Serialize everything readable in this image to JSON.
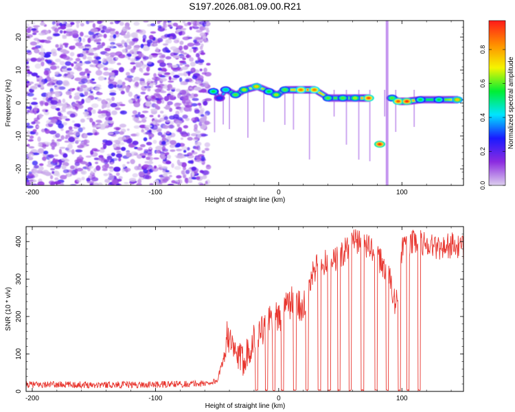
{
  "figure_title": "S197.2026.081.09.00.R21",
  "colorbar": {
    "label": "Normalized spectral amplitude",
    "ticks": [
      "0.0",
      "0.2",
      "0.4",
      "0.6",
      "0.8"
    ],
    "tick_values": [
      0.0,
      0.2,
      0.4,
      0.6,
      0.8
    ],
    "range": [
      0,
      0.97
    ],
    "colors": [
      "#dccfee",
      "#8c2be0",
      "#1a1aff",
      "#00e5ff",
      "#00ee33",
      "#f5f500",
      "#ff8c00",
      "#ff1a1a"
    ]
  },
  "chart_data": [
    {
      "type": "heatmap",
      "title": "S197.2026.081.09.00.R21",
      "xlabel": "Height of straight line (km)",
      "ylabel": "Frequency (Hz)",
      "xlim": [
        -205,
        150
      ],
      "ylim": [
        -25,
        25
      ],
      "xticks": [
        -200,
        -100,
        0,
        100
      ],
      "yticks": [
        -20,
        -10,
        0,
        10,
        20
      ],
      "noise_region_x": [
        -205,
        -57
      ],
      "noise_amplitude_range": [
        0.0,
        0.25
      ],
      "ridge": [
        {
          "x": -53,
          "f": 3.5,
          "a": 0.55
        },
        {
          "x": -48,
          "f": 1.5,
          "a": 0.3
        },
        {
          "x": -43,
          "f": 4.0,
          "a": 0.5
        },
        {
          "x": -35,
          "f": 2.5,
          "a": 0.6
        },
        {
          "x": -28,
          "f": 4.0,
          "a": 0.65
        },
        {
          "x": -18,
          "f": 5.0,
          "a": 0.75
        },
        {
          "x": -8,
          "f": 3.5,
          "a": 0.55
        },
        {
          "x": -2,
          "f": 2.5,
          "a": 0.65
        },
        {
          "x": 5,
          "f": 4.0,
          "a": 0.6
        },
        {
          "x": 18,
          "f": 4.0,
          "a": 0.85
        },
        {
          "x": 29,
          "f": 4.0,
          "a": 0.85
        },
        {
          "x": 40,
          "f": 1.5,
          "a": 0.6
        },
        {
          "x": 52,
          "f": 1.5,
          "a": 0.6
        },
        {
          "x": 62,
          "f": 1.5,
          "a": 0.65
        },
        {
          "x": 73,
          "f": 1.5,
          "a": 0.9
        },
        {
          "x": 82,
          "f": -12.5,
          "a": 0.95
        },
        {
          "x": 92,
          "f": 1.5,
          "a": 0.6
        },
        {
          "x": 97,
          "f": 0.5,
          "a": 0.9
        },
        {
          "x": 104,
          "f": 0.5,
          "a": 0.95
        },
        {
          "x": 115,
          "f": 1.0,
          "a": 0.55
        },
        {
          "x": 130,
          "f": 1.0,
          "a": 0.55
        },
        {
          "x": 145,
          "f": 1.0,
          "a": 0.75
        }
      ]
    },
    {
      "type": "line",
      "xlabel": "Height of straight line (km)",
      "ylabel": "SNR (10 * v/v)",
      "xlim": [
        -205,
        150
      ],
      "ylim": [
        0,
        440
      ],
      "xticks": [
        -200,
        -100,
        0,
        100
      ],
      "yticks": [
        0,
        100,
        200,
        300,
        400
      ],
      "series": [
        {
          "name": "SNR",
          "color": "#e8342d",
          "x": [
            -205,
            -150,
            -100,
            -60,
            -50,
            -44,
            -42,
            -38,
            -30,
            -20,
            -10,
            0,
            10,
            20,
            30,
            40,
            50,
            60,
            70,
            80,
            90,
            95,
            100,
            110,
            120,
            130,
            140,
            150
          ],
          "y": [
            15,
            15,
            15,
            18,
            25,
            90,
            170,
            110,
            80,
            140,
            180,
            200,
            240,
            230,
            330,
            350,
            360,
            400,
            395,
            360,
            310,
            220,
            380,
            400,
            395,
            385,
            390,
            380
          ],
          "dropouts_x": [
            -18,
            -10,
            -4,
            3,
            13,
            23,
            33,
            41,
            49,
            58,
            68,
            79,
            88,
            98,
            105,
            114
          ]
        }
      ]
    }
  ]
}
